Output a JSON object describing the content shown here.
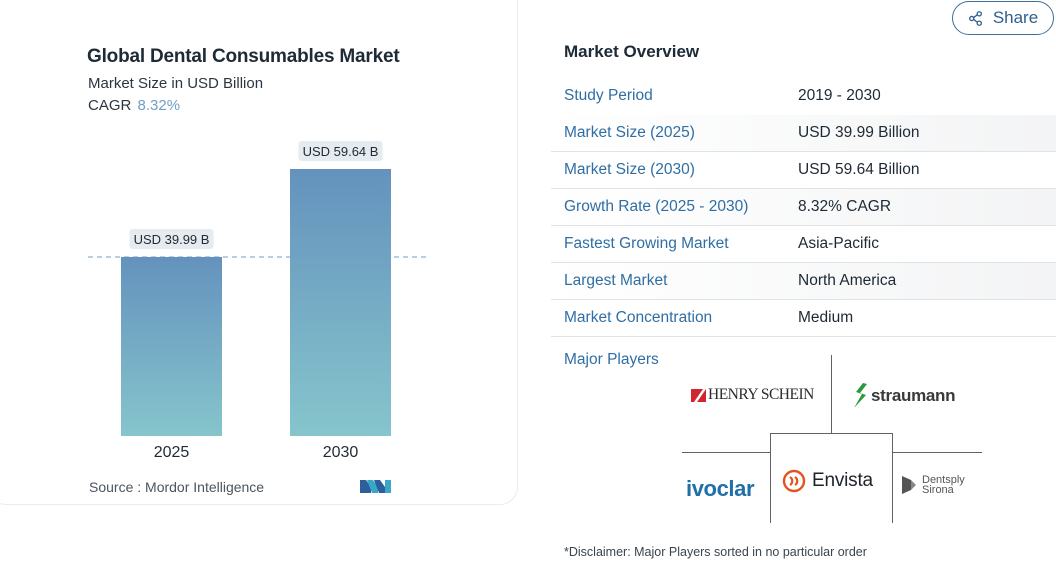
{
  "chart_card": {
    "title": "Global Dental Consumables Market",
    "subtitle": "Market Size in USD Billion",
    "cagr_label": "CAGR",
    "cagr_value": "8.32%",
    "source": "Source :  Mordor Intelligence",
    "logo_icon": "mordor-intelligence-logo-icon"
  },
  "chart_data": {
    "type": "bar",
    "categories": [
      "2025",
      "2030"
    ],
    "values": [
      39.99,
      59.64
    ],
    "data_labels": [
      "USD 39.99 B",
      "USD 59.64 B"
    ],
    "title": "Global Dental Consumables Market",
    "subtitle": "Market Size in USD Billion",
    "xlabel": "",
    "ylabel": "",
    "ylim": [
      0,
      59.64
    ],
    "grid": false,
    "reference_line": 39.99,
    "colors": {
      "bar_top": "#6492bd",
      "bar_bottom": "#86c5cc",
      "reference_line": "#6f9fc6"
    }
  },
  "share": {
    "label": "Share",
    "icon": "share-icon"
  },
  "overview": {
    "title": "Market Overview",
    "rows": [
      {
        "key": "Study Period",
        "value": "2019 - 2030"
      },
      {
        "key": "Market Size (2025)",
        "value": "USD 39.99 Billion"
      },
      {
        "key": "Market Size (2030)",
        "value": "USD 59.64 Billion"
      },
      {
        "key": "Growth Rate (2025 - 2030)",
        "value": "8.32% CAGR"
      },
      {
        "key": "Fastest Growing Market",
        "value": "Asia-Pacific"
      },
      {
        "key": "Largest Market",
        "value": "North America"
      },
      {
        "key": "Market Concentration",
        "value": "Medium"
      }
    ],
    "major_players_label": "Major Players",
    "players": [
      "Henry Schein",
      "Straumann",
      "Ivoclar",
      "Envista",
      "Dentsply Sirona"
    ],
    "player_logo_text": {
      "henry_schein": "HENRY SCHEIN",
      "straumann": "straumann",
      "ivoclar": "ivoclar",
      "envista": "Envista",
      "dentsply_line1": "Dentsply",
      "dentsply_line2": "Sirona"
    },
    "disclaimer": "*Disclaimer: Major Players sorted in no particular order"
  },
  "colors": {
    "accent_blue": "#2f6ea4",
    "cagr_blue": "#6f9fc6",
    "ivoclar_blue": "#1f6fa8",
    "henry_schein_red": "#d0262f",
    "straumann_green": "#2a9a3a",
    "envista_orange": "#e2531f"
  }
}
